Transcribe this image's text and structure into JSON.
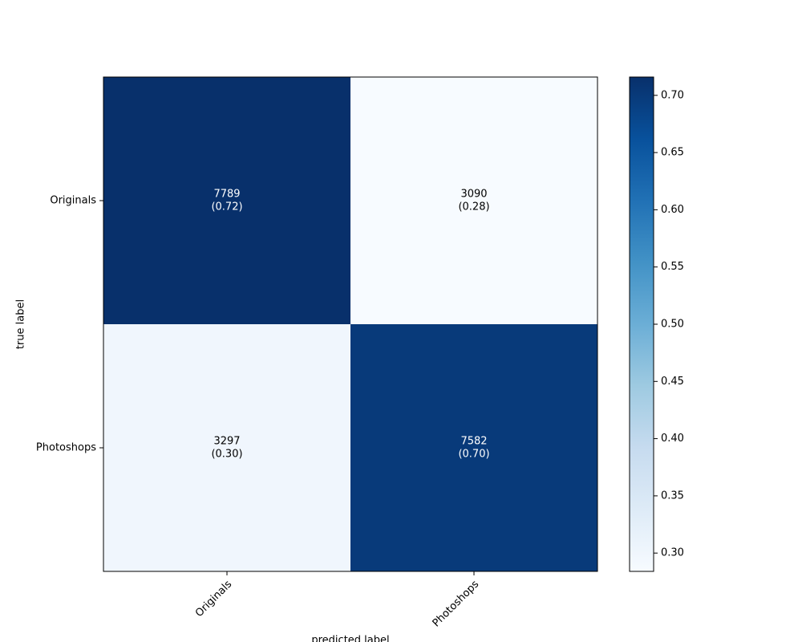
{
  "chart_data": {
    "type": "heatmap",
    "x_categories": [
      "Originals",
      "Photoshops"
    ],
    "y_categories": [
      "Originals",
      "Photoshops"
    ],
    "xlabel": "predicted label",
    "ylabel": "true label",
    "values": [
      [
        7789,
        3090
      ],
      [
        3297,
        7582
      ]
    ],
    "fractions": [
      [
        0.72,
        0.28
      ],
      [
        0.3,
        0.7
      ]
    ],
    "fraction_labels": [
      [
        "(0.72)",
        "(0.28)"
      ],
      [
        "(0.30)",
        "(0.70)"
      ]
    ],
    "zlim": [
      0.284,
      0.716
    ],
    "zticks": [
      {
        "value": 0.3,
        "label": "0.30"
      },
      {
        "value": 0.35,
        "label": "0.35"
      },
      {
        "value": 0.4,
        "label": "0.40"
      },
      {
        "value": 0.45,
        "label": "0.45"
      },
      {
        "value": 0.5,
        "label": "0.50"
      },
      {
        "value": 0.55,
        "label": "0.55"
      },
      {
        "value": 0.6,
        "label": "0.60"
      },
      {
        "value": 0.65,
        "label": "0.65"
      },
      {
        "value": 0.7,
        "label": "0.70"
      }
    ],
    "colormap": [
      "#f7fbff",
      "#deebf7",
      "#c6dbef",
      "#9ecae1",
      "#6baed6",
      "#4292c6",
      "#2171b5",
      "#08519c",
      "#08306b"
    ]
  }
}
